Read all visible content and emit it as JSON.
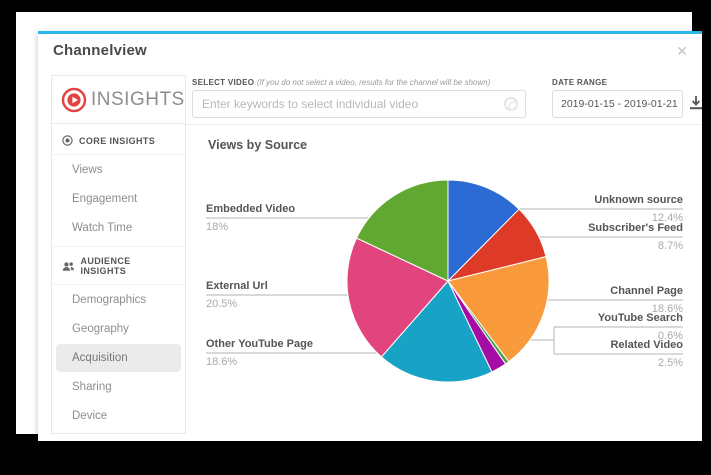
{
  "window": {
    "title": "Channelview",
    "close_icon": "✕"
  },
  "brand": {
    "name": "INSIGHTS",
    "logo_icon": "play-circle-icon",
    "logo_color": "#e2453f"
  },
  "toolbar": {
    "select_video": {
      "label": "SELECT VIDEO",
      "note": "(If you do not select a video, results for the channel will be shown)",
      "placeholder": "Enter keywords to select individual video"
    },
    "date_range": {
      "label": "DATE RANGE",
      "value": "2019-01-15 - 2019-01-21"
    }
  },
  "sidebar": {
    "sections": [
      {
        "label": "CORE INSIGHTS",
        "icon": "bullseye-icon",
        "items": [
          {
            "label": "Views"
          },
          {
            "label": "Engagement"
          },
          {
            "label": "Watch Time"
          }
        ]
      },
      {
        "label": "AUDIENCE INSIGHTS",
        "icon": "users-icon",
        "items": [
          {
            "label": "Demographics"
          },
          {
            "label": "Geography"
          },
          {
            "label": "Acquisition",
            "active": true
          },
          {
            "label": "Sharing"
          },
          {
            "label": "Device"
          }
        ]
      }
    ]
  },
  "chart_data": {
    "type": "pie",
    "title": "Views by Source",
    "start_angle_deg": 0,
    "direction": "clockwise",
    "legend_position": "callout-labels",
    "slices": [
      {
        "label": "Unknown source",
        "value": 12.4,
        "display": "12.4%",
        "color": "#2b6bd3",
        "side": "right"
      },
      {
        "label": "Subscriber's Feed",
        "value": 8.7,
        "display": "8.7%",
        "color": "#dd3a28",
        "side": "right"
      },
      {
        "label": "Channel Page",
        "value": 18.6,
        "display": "18.6%",
        "color": "#f99b3c",
        "side": "right"
      },
      {
        "label": "YouTube Search",
        "value": 0.6,
        "display": "0.6%",
        "color": "#43a047",
        "side": "right"
      },
      {
        "label": "Related Video",
        "value": 2.5,
        "display": "2.5%",
        "color": "#a50ba5",
        "side": "right"
      },
      {
        "label": "Other YouTube Page",
        "value": 18.6,
        "display": "18.6%",
        "color": "#17a2c6",
        "side": "left"
      },
      {
        "label": "External Url",
        "value": 20.5,
        "display": "20.5%",
        "color": "#e2447e",
        "side": "left"
      },
      {
        "label": "Embedded Video",
        "value": 18,
        "display": "18%",
        "color": "#61a832",
        "side": "left"
      }
    ]
  },
  "colors": {
    "accent_top_border": "#29b6e8",
    "active_item_bg": "#ebebeb",
    "line": "#b3b3b3"
  }
}
